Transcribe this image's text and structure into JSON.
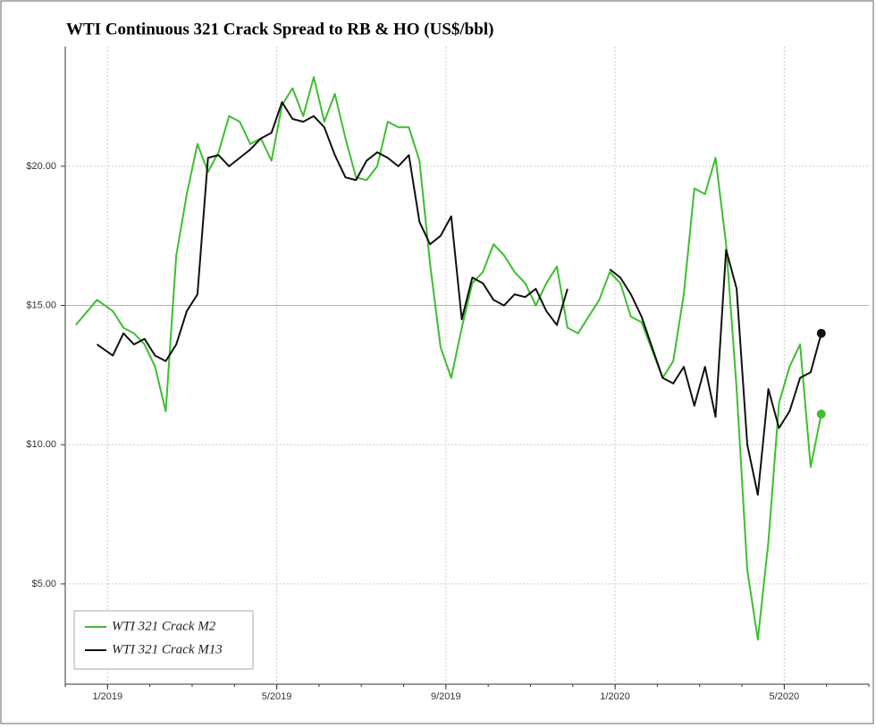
{
  "chart_data": {
    "type": "line",
    "title": "WTI Continuous 321 Crack Spread to RB & HO (US$/bbl)",
    "x": [
      "2018-12",
      "2018-12",
      "2019-01",
      "2019-01",
      "2019-01",
      "2019-01",
      "2019-02",
      "2019-02",
      "2019-02",
      "2019-02",
      "2019-03",
      "2019-03",
      "2019-03",
      "2019-03",
      "2019-04",
      "2019-04",
      "2019-04",
      "2019-04",
      "2019-05",
      "2019-05",
      "2019-05",
      "2019-05",
      "2019-06",
      "2019-06",
      "2019-06",
      "2019-06",
      "2019-07",
      "2019-07",
      "2019-07",
      "2019-07",
      "2019-08",
      "2019-08",
      "2019-08",
      "2019-08",
      "2019-09",
      "2019-09",
      "2019-09",
      "2019-09",
      "2019-10",
      "2019-10",
      "2019-10",
      "2019-10",
      "2019-11",
      "2019-11",
      "2019-11",
      "2019-11",
      "2019-12",
      "2019-12",
      "2019-12",
      "2019-12",
      "2020-01",
      "2020-01",
      "2020-01",
      "2020-01",
      "2020-02",
      "2020-02",
      "2020-02",
      "2020-02",
      "2020-03",
      "2020-03",
      "2020-03",
      "2020-03",
      "2020-04",
      "2020-04",
      "2020-04",
      "2020-04",
      "2020-05",
      "2020-05",
      "2020-05",
      "2020-05"
    ],
    "series": [
      {
        "name": "WTI 321 Crack M2",
        "color": "#3dbf2f",
        "values": [
          14.3,
          15.2,
          14.8,
          14.2,
          14.0,
          13.6,
          12.8,
          11.2,
          16.8,
          19.0,
          20.8,
          19.8,
          20.5,
          21.8,
          21.6,
          20.8,
          21.0,
          20.2,
          22.2,
          22.8,
          21.8,
          23.2,
          21.6,
          22.6,
          21.0,
          19.6,
          19.5,
          20.0,
          21.6,
          21.4,
          21.4,
          20.2,
          16.5,
          13.5,
          12.4,
          14.2,
          15.8,
          16.2,
          17.2,
          16.8,
          16.2,
          15.8,
          15.0,
          15.8,
          16.4,
          14.2,
          14.0,
          14.6,
          15.2,
          16.2,
          15.8,
          14.6,
          14.4,
          13.4,
          12.4,
          13.0,
          15.4,
          19.2,
          19.0,
          20.3,
          17.2,
          12.0,
          5.5,
          3.0,
          6.5,
          11.5,
          12.8,
          13.6,
          9.2,
          11.1
        ]
      },
      {
        "name": "WTI 321 Crack M13",
        "color": "#111111",
        "values": [
          null,
          13.6,
          13.2,
          14.0,
          13.6,
          13.8,
          13.2,
          13.0,
          13.6,
          14.8,
          15.4,
          20.3,
          20.4,
          20.0,
          20.3,
          20.6,
          21.0,
          21.2,
          22.3,
          21.7,
          21.6,
          21.8,
          21.4,
          20.4,
          19.6,
          19.5,
          20.2,
          20.5,
          20.3,
          20.0,
          20.4,
          18.0,
          17.2,
          17.5,
          18.2,
          14.5,
          16.0,
          15.8,
          15.2,
          15.0,
          15.4,
          15.3,
          15.6,
          14.8,
          14.3,
          15.6,
          null,
          null,
          null,
          16.3,
          16.0,
          15.4,
          14.6,
          13.5,
          12.4,
          12.2,
          12.8,
          11.4,
          12.8,
          11.0,
          17.0,
          15.6,
          10.0,
          8.2,
          12.0,
          10.6,
          11.2,
          12.4,
          12.6,
          14.0
        ]
      }
    ],
    "xlim": [
      "2018-12",
      "2020-07"
    ],
    "xticks": [
      {
        "value": "2019-01",
        "label": "1/2019"
      },
      {
        "value": "2019-05",
        "label": "5/2019"
      },
      {
        "value": "2019-09",
        "label": "9/2019"
      },
      {
        "value": "2020-01",
        "label": "1/2020"
      },
      {
        "value": "2020-05",
        "label": "5/2020"
      }
    ],
    "ylim": [
      1.4,
      24.3
    ],
    "yticks": [
      {
        "value": 5,
        "label": "$5.00"
      },
      {
        "value": 10,
        "label": "$10.00"
      },
      {
        "value": 15,
        "label": "$15.00"
      },
      {
        "value": 20,
        "label": "$20.00"
      }
    ],
    "reference_line": 15,
    "reference_color": "#d9a0a0",
    "grid": true,
    "legend": "lower left",
    "end_markers": true
  }
}
